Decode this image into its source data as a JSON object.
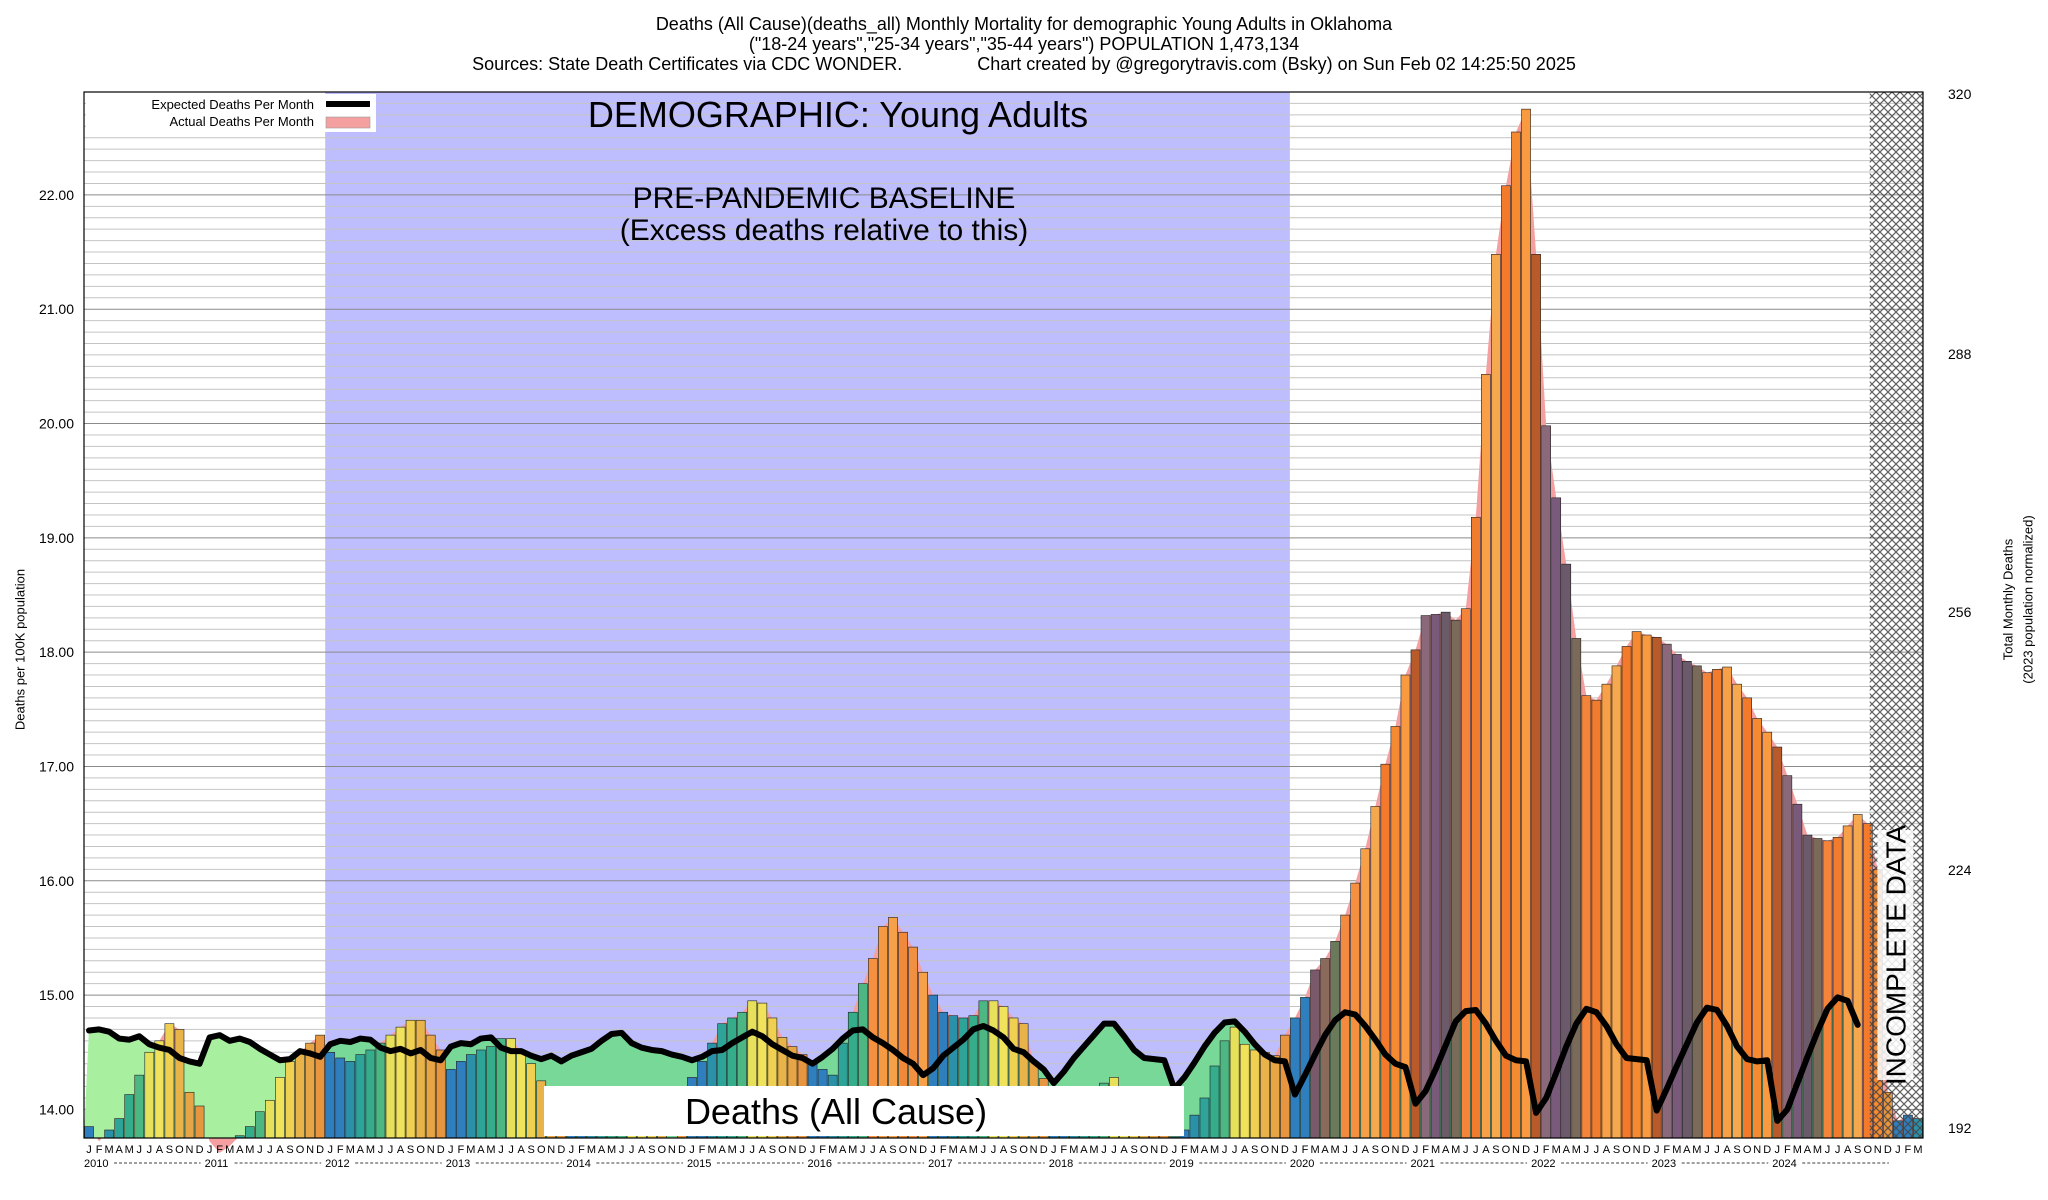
{
  "title_lines": [
    "Deaths (All Cause)(deaths_all) Monthly Mortality for demographic Young Adults in Oklahoma",
    "(\"18-24 years\",\"25-34 years\",\"35-44 years\") POPULATION 1,473,134",
    "Sources: State Death Certificates via CDC WONDER.               Chart created by @gregorytravis.com (Bsky) on Sun Feb 02 14:25:50 2025"
  ],
  "colors": {
    "baseline_shade": "#bebeff",
    "expected_fill": "#78d898",
    "expected_fill_early": "#a8f0a0",
    "excess_fill": "#f4a0a0",
    "expected_line": "#000000",
    "incomplete_hatch": "#555555"
  },
  "overlays": {
    "demographic": "DEMOGRAPHIC: Young Adults",
    "baseline_line1": "PRE-PANDEMIC BASELINE",
    "baseline_line2": "(Excess deaths relative to this)",
    "cause_label": "Deaths (All Cause)",
    "incomplete": "INCOMPLETE DATA"
  },
  "chart_data": {
    "type": "bar",
    "title": "Deaths (All Cause)(deaths_all) Monthly Mortality for demographic Young Adults in Oklahoma",
    "ylabel": "Deaths per 100K population",
    "ylabel_right": [
      "Total Monthly Deaths",
      "(2023 population normalized)"
    ],
    "ylim": [
      13.75,
      22.9
    ],
    "yticks": [
      "14.00",
      "15.00",
      "16.00",
      "17.00",
      "18.00",
      "19.00",
      "20.00",
      "21.00",
      "22.00"
    ],
    "right_ticks": [
      "192",
      "224",
      "256",
      "288",
      "320"
    ],
    "month_letters": [
      "J",
      "F",
      "M",
      "A",
      "M",
      "J",
      "J",
      "A",
      "S",
      "O",
      "N",
      "D"
    ],
    "years": [
      "2010",
      "2011",
      "2012",
      "2013",
      "2014",
      "2015",
      "2016",
      "2017",
      "2018",
      "2019",
      "2020",
      "2021",
      "2022",
      "2023",
      "2024"
    ],
    "baseline_period": [
      "2012-01",
      "2019-12"
    ],
    "incomplete_from": "2024-10",
    "legend": [
      "Expected Deaths Per Month",
      "Actual Deaths Per Month"
    ],
    "series": [
      {
        "name": "Actual Deaths Per Month",
        "values": [
          13.85,
          13.72,
          13.82,
          13.92,
          14.13,
          14.3,
          14.5,
          14.6,
          14.75,
          14.7,
          14.15,
          14.03,
          13.72,
          13.62,
          13.68,
          13.77,
          13.85,
          13.98,
          14.08,
          14.28,
          14.42,
          14.5,
          14.58,
          14.65,
          14.5,
          14.45,
          14.42,
          14.48,
          14.52,
          14.58,
          14.65,
          14.72,
          14.78,
          14.78,
          14.65,
          14.52,
          14.35,
          14.42,
          14.48,
          14.52,
          14.55,
          14.62,
          14.62,
          14.5,
          14.4,
          14.25,
          14.08,
          13.92,
          13.8,
          13.85,
          13.8,
          13.95,
          14.13,
          14.12,
          13.9,
          13.85,
          13.8,
          13.78,
          13.75,
          13.8,
          14.28,
          14.42,
          14.58,
          14.75,
          14.8,
          14.85,
          14.95,
          14.93,
          14.8,
          14.63,
          14.55,
          14.48,
          14.4,
          14.35,
          14.3,
          14.58,
          14.85,
          15.1,
          15.32,
          15.6,
          15.68,
          15.55,
          15.42,
          15.2,
          15.0,
          14.85,
          14.82,
          14.8,
          14.82,
          14.95,
          14.95,
          14.9,
          14.8,
          14.75,
          14.42,
          14.27,
          14.13,
          14.07,
          14.1,
          14.12,
          14.18,
          14.23,
          14.28,
          14.13,
          14.07,
          14.03,
          14.0,
          13.9,
          13.76,
          13.82,
          13.95,
          14.1,
          14.38,
          14.6,
          14.72,
          14.57,
          14.52,
          14.5,
          14.47,
          14.65,
          14.8,
          14.98,
          15.22,
          15.32,
          15.47,
          15.7,
          15.98,
          16.28,
          16.65,
          17.02,
          17.35,
          17.8,
          18.02,
          18.32,
          18.33,
          18.35,
          18.28,
          18.38,
          19.18,
          20.43,
          21.48,
          22.08,
          22.55,
          22.75,
          21.48,
          19.98,
          19.35,
          18.77,
          18.12,
          17.62,
          17.58,
          17.72,
          17.88,
          18.05,
          18.18,
          18.15,
          18.13,
          18.07,
          17.98,
          17.92,
          17.88,
          17.82,
          17.85,
          17.87,
          17.72,
          17.6,
          17.42,
          17.3,
          17.17,
          16.92,
          16.67,
          16.4,
          16.37,
          16.35,
          16.38,
          16.48,
          16.58,
          16.5,
          16.1,
          14.15,
          13.9,
          13.95,
          13.92
        ]
      },
      {
        "name": "Expected Deaths Per Month",
        "values": [
          14.69,
          14.7,
          14.68,
          14.62,
          14.61,
          14.64,
          14.57,
          14.54,
          14.52,
          14.45,
          14.42,
          14.4,
          14.63,
          14.65,
          14.6,
          14.62,
          14.59,
          14.53,
          14.48,
          14.43,
          14.44,
          14.51,
          14.49,
          14.46,
          14.57,
          14.6,
          14.59,
          14.62,
          14.61,
          14.54,
          14.51,
          14.53,
          14.49,
          14.52,
          14.45,
          14.43,
          14.55,
          14.58,
          14.57,
          14.62,
          14.63,
          14.54,
          14.51,
          14.51,
          14.47,
          14.44,
          14.47,
          14.42,
          14.47,
          14.5,
          14.53,
          14.6,
          14.66,
          14.67,
          14.58,
          14.54,
          14.52,
          14.51,
          14.48,
          14.46,
          14.43,
          14.46,
          14.51,
          14.52,
          14.58,
          14.63,
          14.68,
          14.64,
          14.57,
          14.52,
          14.47,
          14.45,
          14.4,
          14.46,
          14.53,
          14.62,
          14.69,
          14.7,
          14.63,
          14.58,
          14.52,
          14.45,
          14.4,
          14.3,
          14.36,
          14.47,
          14.54,
          14.61,
          14.7,
          14.73,
          14.69,
          14.63,
          14.53,
          14.5,
          14.42,
          14.35,
          14.23,
          14.33,
          14.45,
          14.55,
          14.65,
          14.75,
          14.75,
          14.64,
          14.52,
          14.45,
          14.44,
          14.43,
          14.18,
          14.28,
          14.41,
          14.55,
          14.67,
          14.76,
          14.77,
          14.68,
          14.57,
          14.48,
          14.43,
          14.42,
          14.13,
          14.3,
          14.48,
          14.65,
          14.78,
          14.85,
          14.83,
          14.73,
          14.61,
          14.48,
          14.4,
          14.37,
          14.05,
          14.16,
          14.35,
          14.56,
          14.77,
          14.86,
          14.87,
          14.75,
          14.6,
          14.47,
          14.43,
          14.42,
          13.97,
          14.1,
          14.32,
          14.55,
          14.75,
          14.88,
          14.85,
          14.73,
          14.57,
          14.45,
          14.44,
          14.43,
          13.99,
          14.18,
          14.38,
          14.57,
          14.76,
          14.89,
          14.87,
          14.73,
          14.55,
          14.44,
          14.42,
          14.43,
          13.9,
          14.0,
          14.23,
          14.46,
          14.68,
          14.88,
          14.98,
          14.95,
          14.74,
          null,
          null,
          null,
          null,
          null,
          null
        ]
      }
    ]
  }
}
